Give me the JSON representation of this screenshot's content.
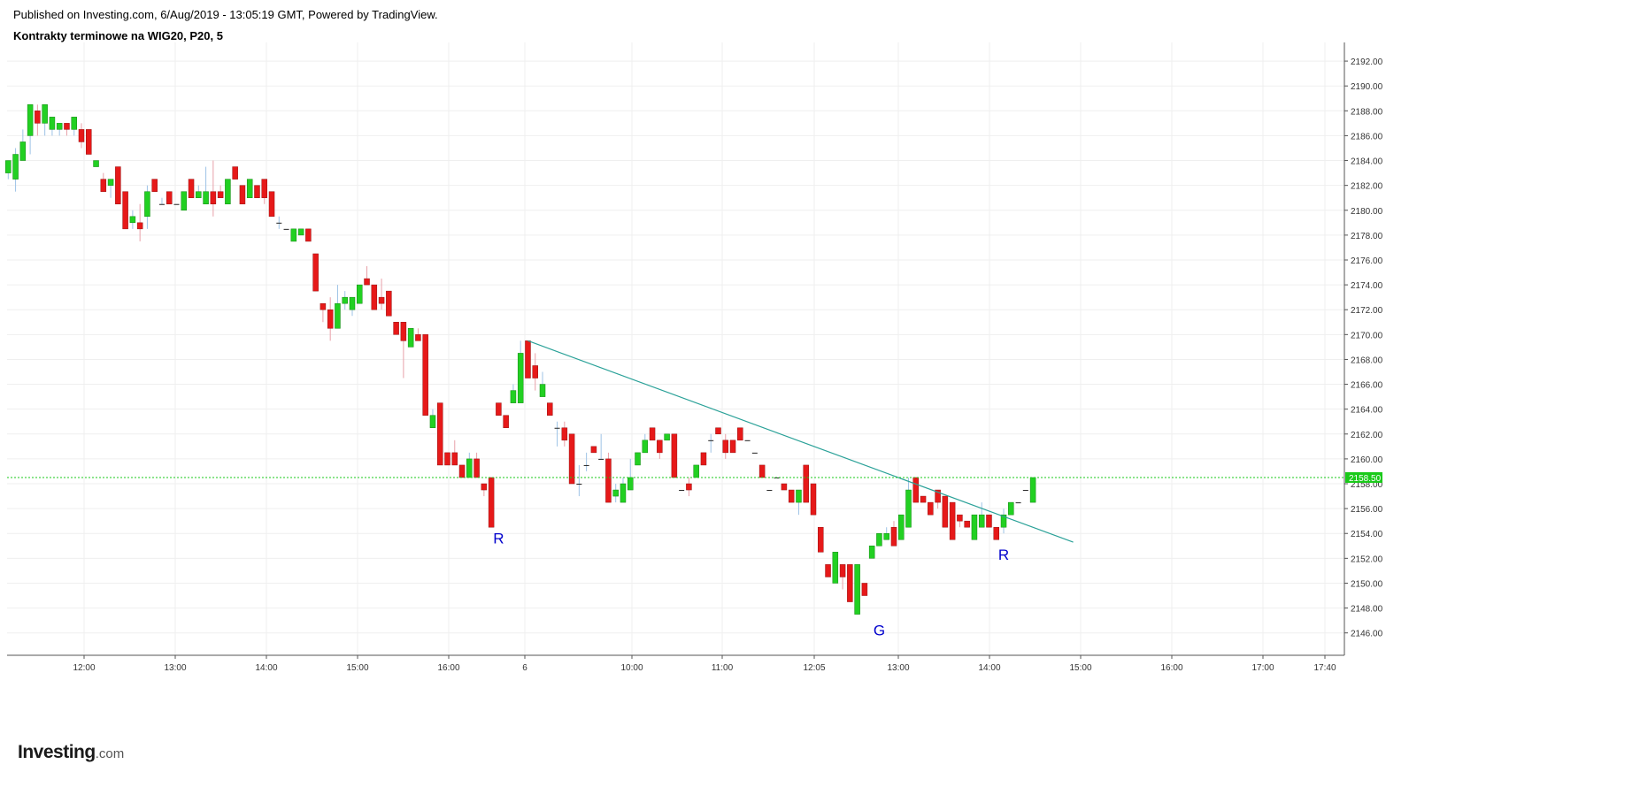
{
  "header": {
    "published": "Published on Investing.com, 6/Aug/2019 - 13:05:19 GMT, Powered by TradingView.",
    "title": "Kontrakty terminowe na WIG20, P20, 5"
  },
  "logo": {
    "main": "Investing",
    "sub": ".com"
  },
  "colors": {
    "up": "#22d022",
    "down": "#e61919",
    "wick_up": "#9ec3e6",
    "wick_down": "#e8a0a8",
    "grid": "#efefef",
    "trendline": "#2aa198",
    "price_line": "#1aca1a",
    "annotation": "#0000cc"
  },
  "chart_data": {
    "type": "candlestick",
    "title": "Kontrakty terminowe na WIG20, P20, 5",
    "y_ticks": [
      "2146.00",
      "2148.00",
      "2150.00",
      "2152.00",
      "2154.00",
      "2156.00",
      "2158.00",
      "2160.00",
      "2162.00",
      "2164.00",
      "2166.00",
      "2168.00",
      "2170.00",
      "2172.00",
      "2174.00",
      "2176.00",
      "2178.00",
      "2180.00",
      "2182.00",
      "2184.00",
      "2186.00",
      "2188.00",
      "2190.00",
      "2192.00"
    ],
    "x_ticks": [
      "12:00",
      "13:00",
      "14:00",
      "15:00",
      "16:00",
      "6",
      "10:00",
      "11:00",
      "12:05",
      "13:00",
      "14:00",
      "15:00",
      "16:00",
      "17:00",
      "17:40"
    ],
    "ylim": [
      2144.2,
      2193.5
    ],
    "last_price": "2158.50",
    "grid": true,
    "candles": [
      [
        2183,
        2184,
        2182.5,
        2184
      ],
      [
        2182.5,
        2185,
        2181.5,
        2184.5
      ],
      [
        2184,
        2186.5,
        2184,
        2185.5
      ],
      [
        2186,
        2188.5,
        2184.5,
        2188.5
      ],
      [
        2188,
        2188.5,
        2186,
        2187
      ],
      [
        2187,
        2188.5,
        2186,
        2188.5
      ],
      [
        2186.5,
        2187.5,
        2186,
        2187.5
      ],
      [
        2186.5,
        2187,
        2186,
        2187
      ],
      [
        2187,
        2187,
        2186,
        2186.5
      ],
      [
        2186.5,
        2187.5,
        2186,
        2187.5
      ],
      [
        2186.5,
        2187,
        2185,
        2185.5
      ],
      [
        2186.5,
        2186.5,
        2184.5,
        2184.5
      ],
      [
        2183.5,
        2184,
        2183.5,
        2184
      ],
      [
        2182.5,
        2183,
        2181.5,
        2181.5
      ],
      [
        2182,
        2182.5,
        2181,
        2182.5
      ],
      [
        2183.5,
        2183.5,
        2180.5,
        2180.5
      ],
      [
        2181.5,
        2181.5,
        2178.5,
        2178.5
      ],
      [
        2179,
        2180,
        2178.5,
        2179.5
      ],
      [
        2179,
        2180.5,
        2177.5,
        2178.5
      ],
      [
        2179.5,
        2182,
        2178.5,
        2181.5
      ],
      [
        2182.5,
        2182.5,
        2181.5,
        2181.5
      ],
      [
        2180.5,
        2181,
        2180.5,
        2180.5
      ],
      [
        2181.5,
        2181.5,
        2180.5,
        2180.5
      ],
      [
        2180.5,
        2180.5,
        2180.5,
        2180.5
      ],
      [
        2180,
        2181.5,
        2180,
        2181.5
      ],
      [
        2182.5,
        2182.5,
        2181,
        2181
      ],
      [
        2181,
        2182,
        2181,
        2181.5
      ],
      [
        2180.5,
        2183.5,
        2180.5,
        2181.5
      ],
      [
        2181.5,
        2184,
        2179.5,
        2180.5
      ],
      [
        2181.5,
        2182,
        2181,
        2181
      ],
      [
        2180.5,
        2182.5,
        2180.5,
        2182.5
      ],
      [
        2183.5,
        2183.5,
        2182.5,
        2182.5
      ],
      [
        2182,
        2182,
        2180.5,
        2180.5
      ],
      [
        2181,
        2182.5,
        2181,
        2182.5
      ],
      [
        2182,
        2182,
        2181,
        2181
      ],
      [
        2182.5,
        2182.5,
        2180.5,
        2181
      ],
      [
        2181.5,
        2181.5,
        2179.5,
        2179.5
      ],
      [
        2179,
        2179.5,
        2178.5,
        2179
      ],
      [
        2178.5,
        2178.5,
        2178.5,
        2178.5
      ],
      [
        2177.5,
        2178.5,
        2177.5,
        2178.5
      ],
      [
        2178,
        2178.5,
        2178,
        2178.5
      ],
      [
        2178.5,
        2178.5,
        2177.5,
        2177.5
      ],
      [
        2176.5,
        2176.5,
        2173.5,
        2173.5
      ],
      [
        2172.5,
        2172.5,
        2171,
        2172
      ],
      [
        2172,
        2173,
        2169.5,
        2170.5
      ],
      [
        2170.5,
        2174,
        2170.5,
        2172.5
      ],
      [
        2172.5,
        2173.5,
        2172,
        2173
      ],
      [
        2172,
        2173,
        2171.5,
        2173
      ],
      [
        2172.5,
        2174,
        2172.5,
        2174
      ],
      [
        2174.5,
        2175.5,
        2174,
        2174
      ],
      [
        2174,
        2174,
        2172,
        2172
      ],
      [
        2173,
        2174.5,
        2172,
        2172.5
      ],
      [
        2173.5,
        2173.5,
        2171.5,
        2171.5
      ],
      [
        2171,
        2171,
        2170,
        2170
      ],
      [
        2171,
        2171,
        2166.5,
        2169.5
      ],
      [
        2169,
        2170.5,
        2169,
        2170.5
      ],
      [
        2170,
        2170.5,
        2169.5,
        2169.5
      ],
      [
        2170,
        2170,
        2163.5,
        2163.5
      ],
      [
        2162.5,
        2164,
        2162.5,
        2163.5
      ],
      [
        2164.5,
        2164.5,
        2159.5,
        2159.5
      ],
      [
        2160.5,
        2160.5,
        2159.5,
        2159.5
      ],
      [
        2160.5,
        2161.5,
        2159.5,
        2159.5
      ],
      [
        2159.5,
        2159.5,
        2158.5,
        2158.5
      ],
      [
        2158.5,
        2160.5,
        2158.5,
        2160
      ],
      [
        2160,
        2160.5,
        2158.5,
        2158.5
      ],
      [
        2158,
        2158,
        2157,
        2157.5
      ],
      [
        2158.5,
        2158.5,
        2154.5,
        2154.5
      ],
      [
        2164.5,
        2164.5,
        2163.5,
        2163.5
      ],
      [
        2163.5,
        2163.5,
        2162.5,
        2162.5
      ],
      [
        2164.5,
        2166,
        2164.5,
        2165.5
      ],
      [
        2164.5,
        2169.5,
        2164.5,
        2168.5
      ],
      [
        2169.5,
        2169.5,
        2166.5,
        2166.5
      ],
      [
        2167.5,
        2168.5,
        2165.5,
        2166.5
      ],
      [
        2165,
        2167,
        2165,
        2166
      ],
      [
        2164.5,
        2164.5,
        2163.5,
        2163.5
      ],
      [
        2162.5,
        2163,
        2161,
        2162.5
      ],
      [
        2162.5,
        2163,
        2161,
        2161.5
      ],
      [
        2162,
        2162,
        2158,
        2158
      ],
      [
        2158,
        2159.5,
        2157,
        2158
      ],
      [
        2159.5,
        2160.5,
        2159,
        2159.5
      ],
      [
        2161,
        2161,
        2160.5,
        2160.5
      ],
      [
        2160,
        2162,
        2160,
        2160
      ],
      [
        2160,
        2160.5,
        2156.5,
        2156.5
      ],
      [
        2157,
        2158,
        2156.5,
        2157.5
      ],
      [
        2156.5,
        2158.5,
        2156.5,
        2158
      ],
      [
        2157.5,
        2160,
        2157.5,
        2158.5
      ],
      [
        2159.5,
        2160.5,
        2159.5,
        2160.5
      ],
      [
        2160.5,
        2162,
        2160.5,
        2161.5
      ],
      [
        2162.5,
        2162.5,
        2161.5,
        2161.5
      ],
      [
        2161.5,
        2161.5,
        2160,
        2160.5
      ],
      [
        2161.5,
        2162,
        2161.5,
        2162
      ],
      [
        2162,
        2162,
        2158.5,
        2158.5
      ],
      [
        2157.5,
        2157.5,
        2157.5,
        2157.5
      ],
      [
        2158,
        2158.5,
        2157,
        2157.5
      ],
      [
        2158.5,
        2159.5,
        2158.5,
        2159.5
      ],
      [
        2160.5,
        2160.5,
        2159.5,
        2159.5
      ],
      [
        2161.5,
        2162,
        2160.5,
        2161.5
      ],
      [
        2162.5,
        2162.5,
        2162,
        2162
      ],
      [
        2161.5,
        2162,
        2160,
        2160.5
      ],
      [
        2161.5,
        2161.5,
        2160.5,
        2160.5
      ],
      [
        2162.5,
        2162.5,
        2161.5,
        2161.5
      ],
      [
        2161.5,
        2161.5,
        2161.5,
        2161.5
      ],
      [
        2160.5,
        2160.5,
        2160.5,
        2160.5
      ],
      [
        2159.5,
        2159.5,
        2158.5,
        2158.5
      ],
      [
        2157.5,
        2157.5,
        2157.5,
        2157.5
      ],
      [
        2158.5,
        2158.5,
        2158.5,
        2158.5
      ],
      [
        2158,
        2158,
        2157.5,
        2157.5
      ],
      [
        2157.5,
        2157.5,
        2156.5,
        2156.5
      ],
      [
        2156.5,
        2157.5,
        2155.5,
        2157.5
      ],
      [
        2159.5,
        2159.5,
        2156.5,
        2156.5
      ],
      [
        2158,
        2158,
        2155.5,
        2155.5
      ],
      [
        2154.5,
        2154.5,
        2152.5,
        2152.5
      ],
      [
        2151.5,
        2151.5,
        2150.5,
        2150.5
      ],
      [
        2150,
        2152.5,
        2150,
        2152.5
      ],
      [
        2151.5,
        2151.5,
        2149.5,
        2150.5
      ],
      [
        2151.5,
        2151.5,
        2148.5,
        2148.5
      ],
      [
        2147.5,
        2151.5,
        2147.5,
        2151.5
      ],
      [
        2150,
        2150,
        2149,
        2149
      ],
      [
        2152,
        2153,
        2152,
        2153
      ],
      [
        2153,
        2154,
        2153,
        2154
      ],
      [
        2153.5,
        2154.5,
        2153.5,
        2154
      ],
      [
        2154.5,
        2155,
        2153,
        2153
      ],
      [
        2153.5,
        2155.5,
        2153.5,
        2155.5
      ],
      [
        2154.5,
        2158.5,
        2154.5,
        2157.5
      ],
      [
        2158.5,
        2158.5,
        2156.5,
        2156.5
      ],
      [
        2157,
        2157,
        2156.5,
        2156.5
      ],
      [
        2156.5,
        2156.5,
        2155.5,
        2155.5
      ],
      [
        2157.5,
        2157.5,
        2156,
        2156.5
      ],
      [
        2157,
        2157,
        2154.5,
        2154.5
      ],
      [
        2156.5,
        2156.5,
        2153.5,
        2153.5
      ],
      [
        2155.5,
        2155.5,
        2154.5,
        2155
      ],
      [
        2155,
        2155,
        2154.5,
        2154.5
      ],
      [
        2153.5,
        2155.5,
        2153.5,
        2155.5
      ],
      [
        2154.5,
        2156.5,
        2154.5,
        2155.5
      ],
      [
        2155.5,
        2155.5,
        2154.5,
        2154.5
      ],
      [
        2154.5,
        2154.5,
        2153.5,
        2153.5
      ],
      [
        2154.5,
        2156,
        2154,
        2155.5
      ],
      [
        2155.5,
        2156.5,
        2155.5,
        2156.5
      ],
      [
        2156.5,
        2156.5,
        2156.5,
        2156.5
      ],
      [
        2157.5,
        2157.5,
        2157.5,
        2157.5
      ],
      [
        2156.5,
        2158.5,
        2156.5,
        2158.5
      ]
    ],
    "trendline": {
      "from": {
        "bar": 71,
        "price": 2169.5
      },
      "to": {
        "bar": 145.5,
        "price": 2153.3
      }
    },
    "annotations": [
      {
        "text": "R",
        "bar": 67,
        "price": 2153.2
      },
      {
        "text": "G",
        "bar": 119,
        "price": 2145.8
      },
      {
        "text": "R",
        "bar": 136,
        "price": 2151.9
      }
    ]
  }
}
